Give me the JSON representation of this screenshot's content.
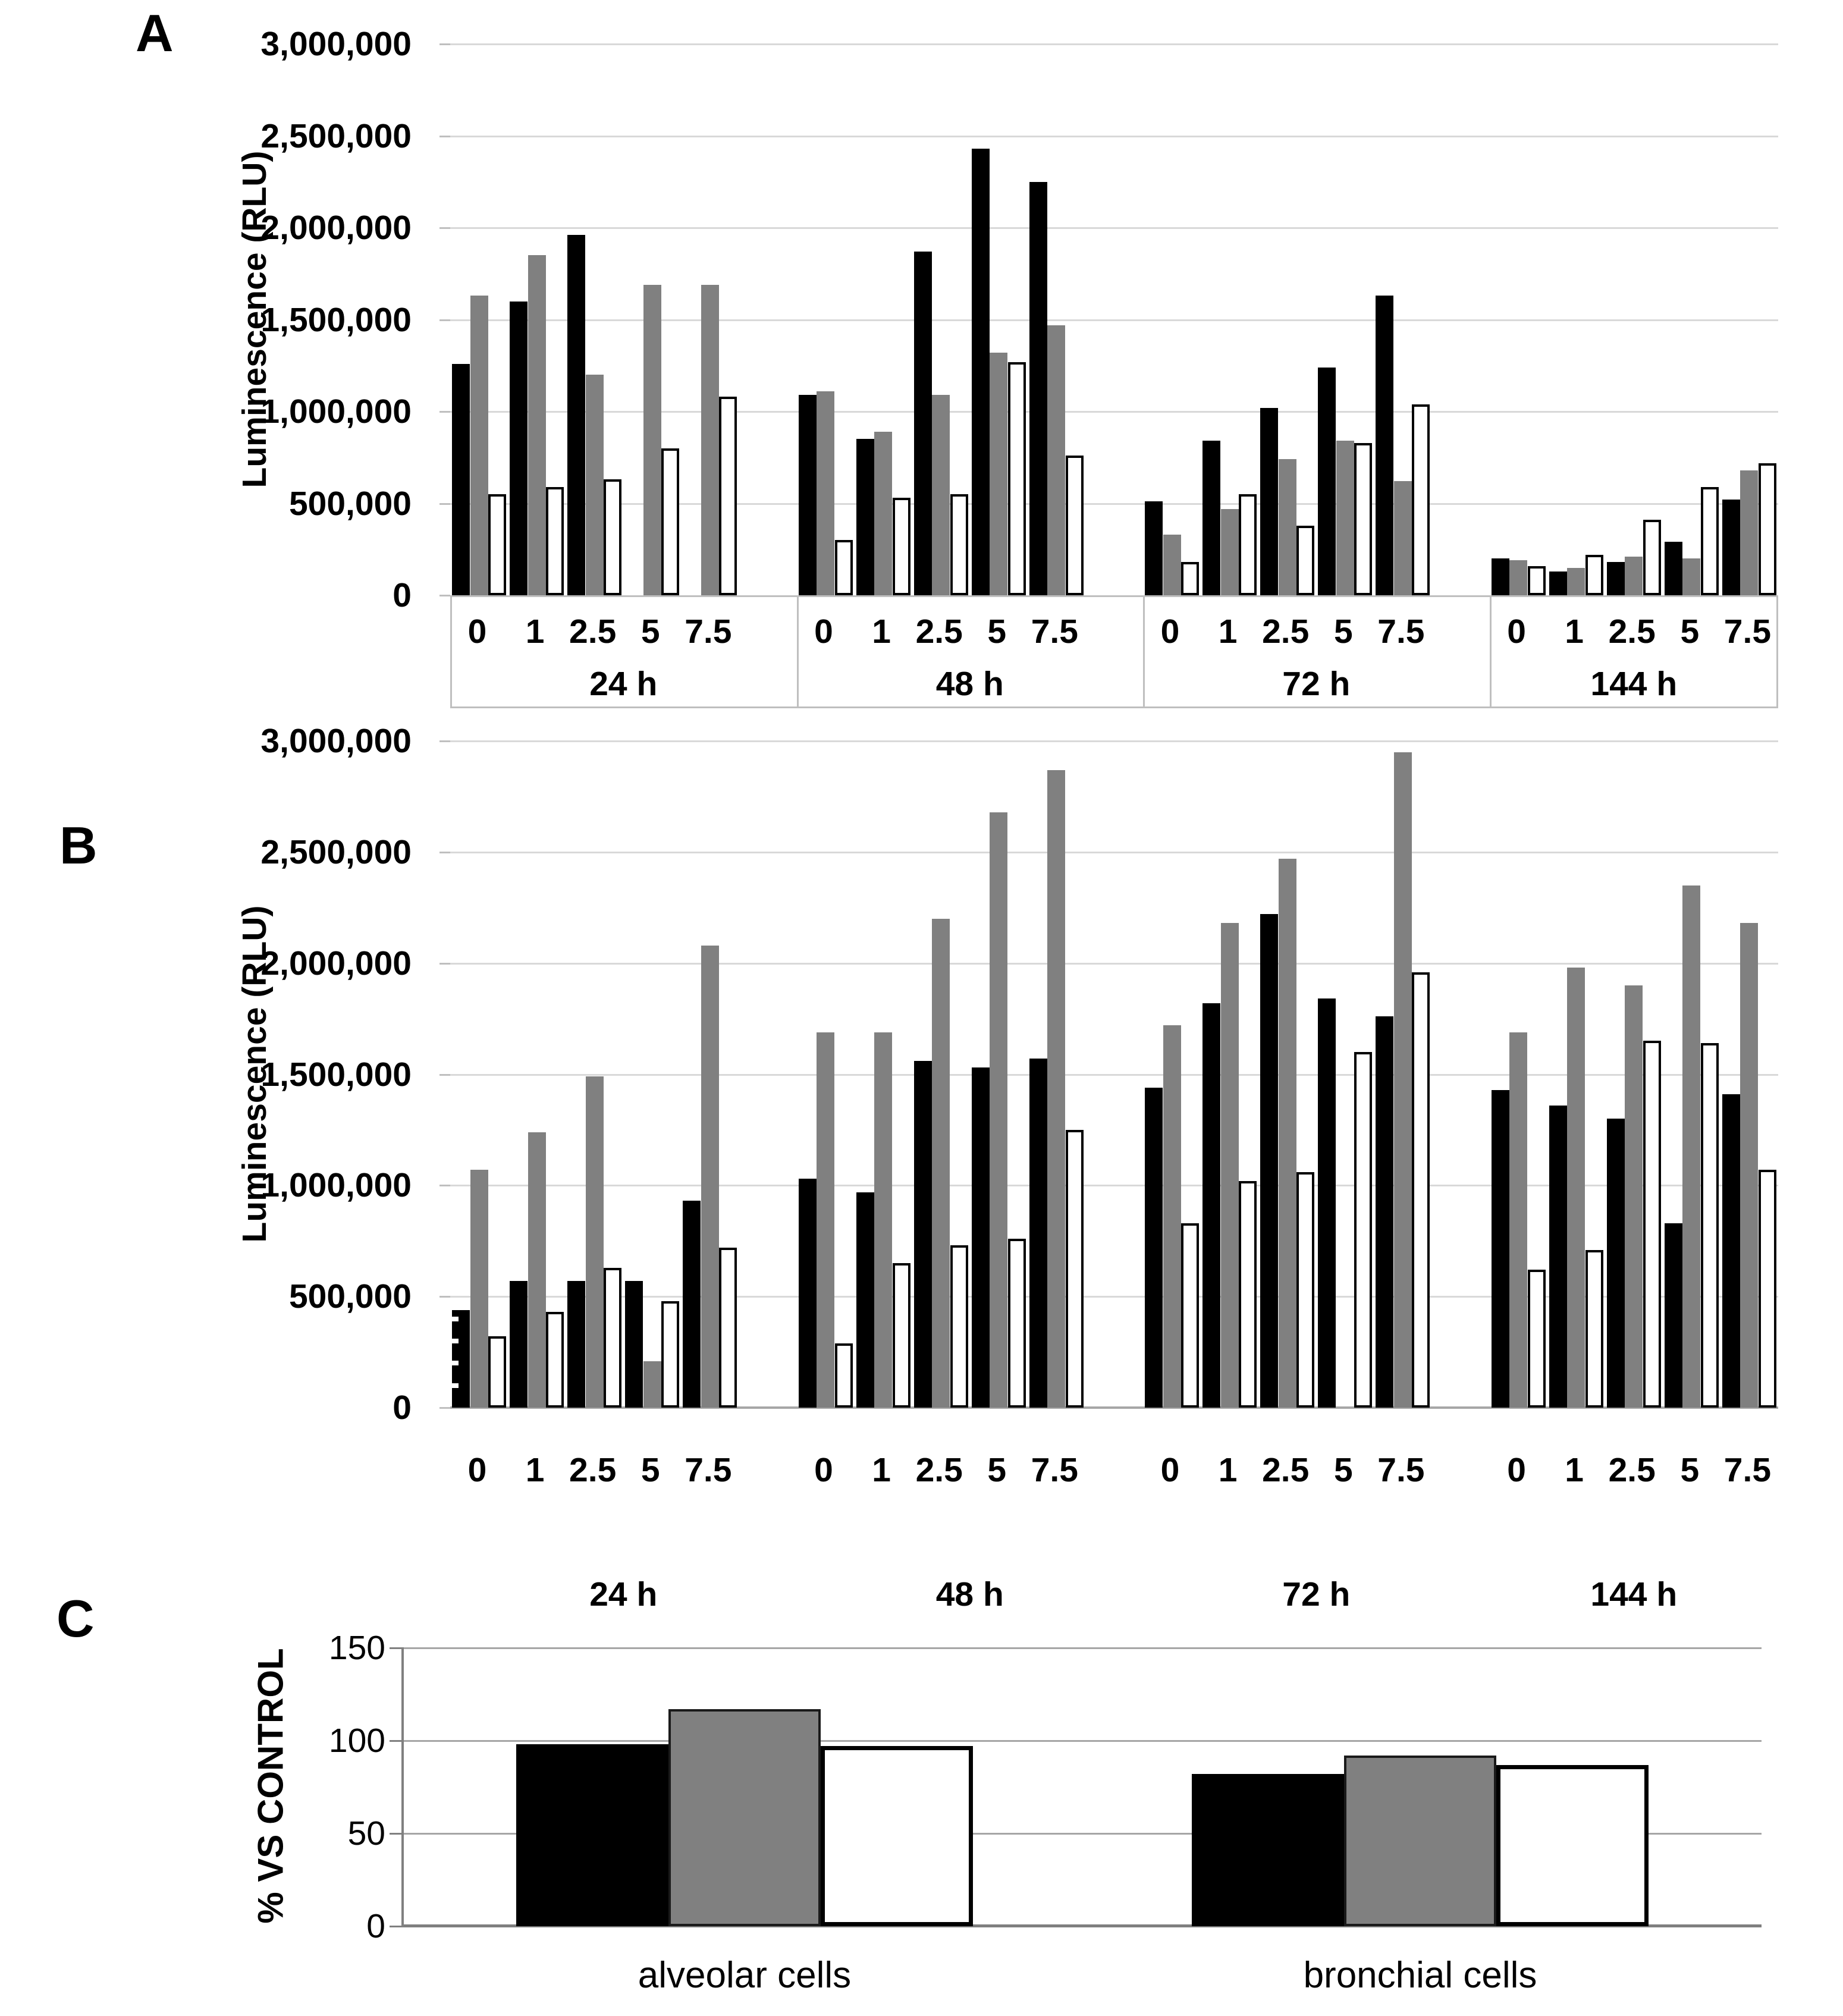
{
  "figure": {
    "panel_a_letter": "A",
    "panel_b_letter": "B",
    "panel_c_letter": "C",
    "ylabel_luminescence": "Luminescence (RLU)",
    "ylabel_percent": "% VS CONTROL"
  },
  "chart_data": [
    {
      "id": "A",
      "type": "bar",
      "ylabel": "Luminescence (RLU)",
      "ylim": [
        0,
        3000000
      ],
      "y_ticks": [
        "3,000,000",
        "2,500,000",
        "2,000,000",
        "1,500,000",
        "1,000,000",
        "500,000",
        "0"
      ],
      "group_labels": [
        "24 h",
        "48 h",
        "72 h",
        "144 h"
      ],
      "categories": [
        "0",
        "1",
        "2.5",
        "5",
        "7.5"
      ],
      "grid": true,
      "legend": "none",
      "boxed_axis": true,
      "series": [
        {
          "name": "black",
          "color": "#000000",
          "values": [
            [
              1260000,
              1600000,
              1960000,
              0,
              0
            ],
            [
              1090000,
              850000,
              1870000,
              2430000,
              2250000
            ],
            [
              510000,
              840000,
              1020000,
              1240000,
              1630000
            ],
            [
              200000,
              130000,
              180000,
              290000,
              520000
            ]
          ]
        },
        {
          "name": "gray",
          "color": "#808080",
          "values": [
            [
              1630000,
              1850000,
              1200000,
              1690000,
              1690000
            ],
            [
              1110000,
              890000,
              1090000,
              1320000,
              1470000
            ],
            [
              330000,
              470000,
              740000,
              840000,
              620000
            ],
            [
              190000,
              150000,
              210000,
              200000,
              680000
            ]
          ]
        },
        {
          "name": "white",
          "color": "#ffffff",
          "values": [
            [
              550000,
              590000,
              630000,
              800000,
              1080000
            ],
            [
              300000,
              530000,
              550000,
              1270000,
              760000
            ],
            [
              180000,
              550000,
              380000,
              830000,
              1040000
            ],
            [
              160000,
              220000,
              410000,
              590000,
              720000
            ]
          ]
        }
      ]
    },
    {
      "id": "B",
      "type": "bar",
      "ylabel": "Luminescence (RLU)",
      "ylim": [
        0,
        3000000
      ],
      "y_ticks": [
        "3,000,000",
        "2,500,000",
        "2,000,000",
        "1,500,000",
        "1,000,000",
        "500,000",
        "0"
      ],
      "group_labels": [
        "24 h",
        "48 h",
        "72 h",
        "144 h"
      ],
      "categories": [
        "0",
        "1",
        "2.5",
        "5",
        "7.5"
      ],
      "grid": true,
      "legend": "none",
      "boxed_axis": false,
      "series": [
        {
          "name": "black",
          "color": "#000000",
          "values": [
            [
              440000,
              570000,
              570000,
              570000,
              930000
            ],
            [
              1030000,
              970000,
              1560000,
              1530000,
              1570000
            ],
            [
              1440000,
              1820000,
              2220000,
              1840000,
              1760000
            ],
            [
              1430000,
              1360000,
              1300000,
              830000,
              1410000
            ]
          ]
        },
        {
          "name": "gray",
          "color": "#808080",
          "values": [
            [
              1070000,
              1240000,
              1490000,
              210000,
              2080000
            ],
            [
              1690000,
              1690000,
              2200000,
              2680000,
              2870000
            ],
            [
              1720000,
              2180000,
              2470000,
              0,
              2950000
            ],
            [
              1690000,
              1980000,
              1900000,
              2350000,
              2180000
            ]
          ]
        },
        {
          "name": "white",
          "color": "#ffffff",
          "values": [
            [
              320000,
              430000,
              630000,
              480000,
              720000
            ],
            [
              290000,
              650000,
              730000,
              760000,
              1250000
            ],
            [
              830000,
              1020000,
              1060000,
              1600000,
              1960000
            ],
            [
              620000,
              710000,
              1650000,
              1640000,
              1070000
            ]
          ]
        }
      ]
    },
    {
      "id": "C",
      "type": "bar",
      "ylabel": "% VS CONTROL",
      "ylim": [
        0,
        150
      ],
      "y_ticks": [
        "150",
        "100",
        "50",
        "0"
      ],
      "categories": [
        "alveolar cells",
        "bronchial cells"
      ],
      "grid": true,
      "legend": "none",
      "series": [
        {
          "name": "black",
          "color": "#000000",
          "values": [
            98,
            82
          ]
        },
        {
          "name": "gray",
          "color": "#808080",
          "values": [
            117,
            92
          ]
        },
        {
          "name": "white",
          "color": "#ffffff",
          "values": [
            97,
            87
          ]
        }
      ]
    }
  ]
}
